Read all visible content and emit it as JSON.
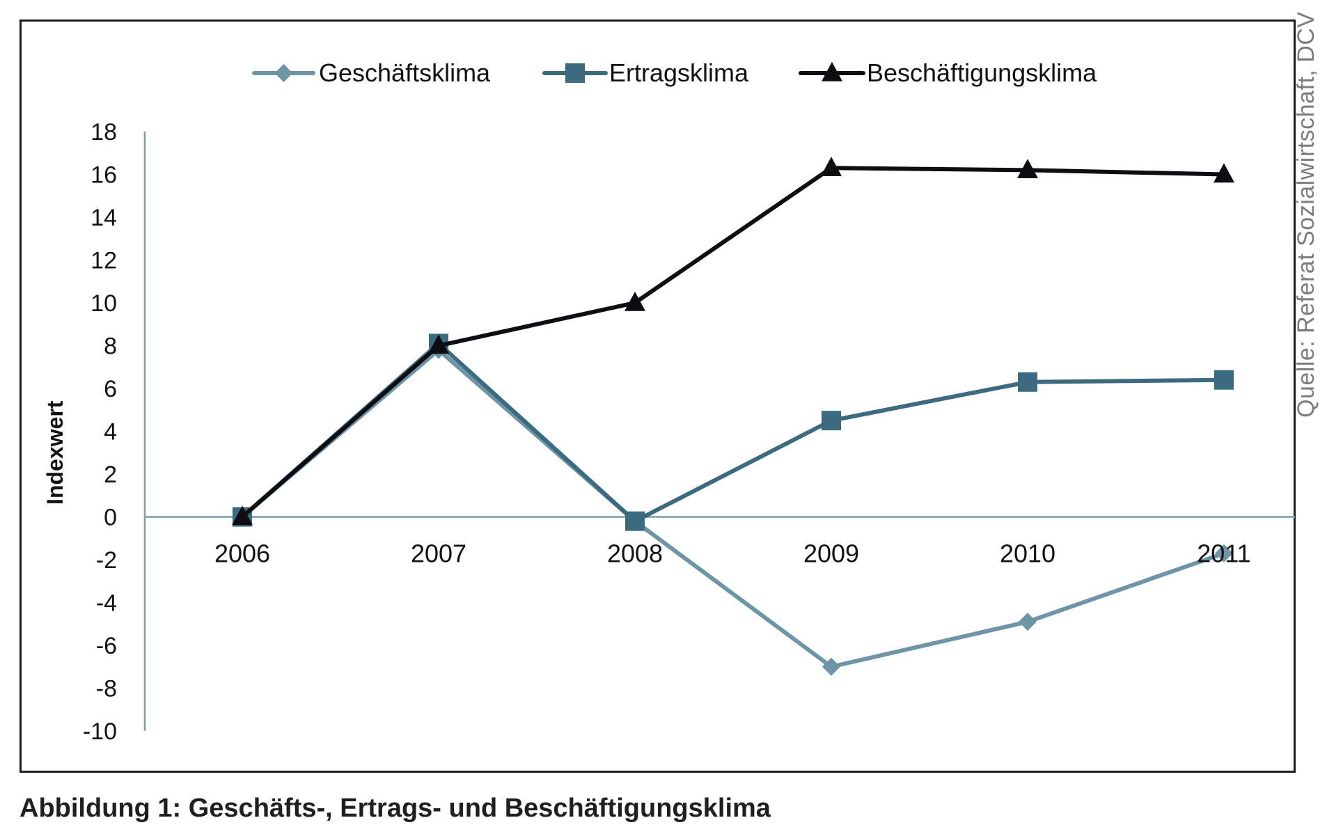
{
  "caption": "Abbildung 1: Geschäfts-, Ertrags- und Beschäftigungsklima",
  "source_note": "Quelle: Referat Sozialwirtschaft, DCV",
  "chart_data": {
    "type": "line",
    "title": "",
    "xlabel": "",
    "ylabel": "Indexwert",
    "categories": [
      "2006",
      "2007",
      "2008",
      "2009",
      "2010",
      "2011"
    ],
    "ylim": [
      -10,
      18
    ],
    "yticks": [
      18,
      16,
      14,
      12,
      10,
      8,
      6,
      4,
      2,
      0,
      -2,
      -4,
      -6,
      -8,
      -10
    ],
    "ytick_labels": [
      "18",
      "16",
      "14",
      "12",
      "10",
      "8",
      "6",
      "4",
      "2",
      "0",
      "-2",
      "-4",
      "-6",
      "-8",
      "-10"
    ],
    "grid": false,
    "legend_position": "top",
    "series": [
      {
        "name": "Geschäftsklima",
        "values": [
          0,
          7.8,
          -0.2,
          -7,
          -4.9,
          -1.7
        ],
        "color": "#6e95a7",
        "marker": "diamond"
      },
      {
        "name": "Ertragsklima",
        "values": [
          0,
          8.1,
          -0.2,
          4.5,
          6.3,
          6.4
        ],
        "color": "#3c6b7f",
        "marker": "square"
      },
      {
        "name": "Beschäftigungsklima",
        "values": [
          0,
          8,
          10,
          16.3,
          16.2,
          16
        ],
        "color": "#0d0d12",
        "marker": "triangle"
      }
    ]
  }
}
